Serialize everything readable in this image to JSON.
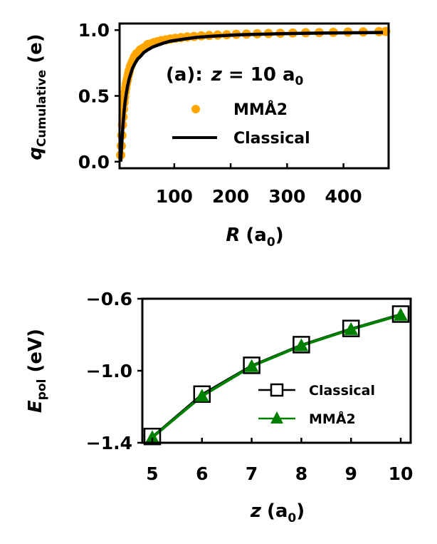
{
  "chart_data": [
    {
      "type": "scatter",
      "panel": "a",
      "annotation": {
        "label": "(a)",
        "sep": ":",
        "var": "z",
        "eq": " = 10 a",
        "sub": "0"
      },
      "xlabel": {
        "var": "R",
        "unit": "(a",
        "sub": "0",
        "close": ")"
      },
      "ylabel": {
        "var": "q",
        "sub": "Cumulative",
        "unit": " (e)"
      },
      "xlim": [
        3,
        480
      ],
      "ylim": [
        -0.05,
        1.05
      ],
      "xticks": [
        100,
        200,
        300,
        400
      ],
      "xtick_labels": [
        "100",
        "200",
        "300",
        "400"
      ],
      "yticks": [
        0.0,
        0.5,
        1.0
      ],
      "ytick_labels": [
        "0.0",
        "0.5",
        "1.0"
      ],
      "legend_position": "center-right",
      "series": [
        {
          "name": "MMÅ2",
          "kind": "scatter",
          "color": "#ffa500",
          "x": [
            5,
            6,
            7,
            8,
            9,
            10,
            11,
            12,
            13,
            14,
            15,
            16,
            17,
            18,
            19,
            20,
            22,
            24,
            26,
            28,
            30,
            33,
            36,
            40,
            44,
            48,
            53,
            58,
            64,
            70,
            77,
            85,
            93,
            102,
            112,
            123,
            135,
            148,
            162,
            177,
            193,
            210,
            228,
            247,
            267,
            288,
            310,
            333,
            357,
            382,
            408,
            435,
            463,
            475
          ],
          "y": [
            0.05,
            0.12,
            0.2,
            0.28,
            0.34,
            0.4,
            0.45,
            0.49,
            0.53,
            0.56,
            0.59,
            0.61,
            0.63,
            0.65,
            0.67,
            0.69,
            0.72,
            0.74,
            0.76,
            0.78,
            0.8,
            0.82,
            0.83,
            0.85,
            0.86,
            0.87,
            0.89,
            0.895,
            0.905,
            0.912,
            0.92,
            0.926,
            0.932,
            0.938,
            0.943,
            0.948,
            0.952,
            0.956,
            0.959,
            0.962,
            0.965,
            0.968,
            0.97,
            0.972,
            0.974,
            0.976,
            0.978,
            0.98,
            0.981,
            0.983,
            0.985,
            0.986,
            0.988,
            0.99
          ]
        },
        {
          "name": "Classical",
          "kind": "line",
          "color": "#000000",
          "x": [
            5,
            7,
            9,
            11,
            13,
            15,
            17,
            20,
            23,
            26,
            30,
            35,
            40,
            46,
            53,
            61,
            70,
            80,
            92,
            106,
            122,
            140,
            160,
            185,
            212,
            245,
            282,
            325,
            375,
            430,
            470
          ],
          "y": [
            0.0,
            0.15,
            0.28,
            0.38,
            0.46,
            0.52,
            0.57,
            0.63,
            0.67,
            0.71,
            0.745,
            0.78,
            0.8,
            0.83,
            0.85,
            0.87,
            0.885,
            0.9,
            0.915,
            0.925,
            0.935,
            0.945,
            0.952,
            0.958,
            0.964,
            0.968,
            0.972,
            0.975,
            0.978,
            0.98,
            0.982
          ]
        }
      ]
    },
    {
      "type": "line",
      "panel": "b",
      "xlabel": {
        "var": "z",
        "unit": "(a",
        "sub": "0",
        "close": ")"
      },
      "ylabel": {
        "var": "E",
        "sub": "pol",
        "unit": " (eV)"
      },
      "xlim": [
        4.8,
        10.2
      ],
      "ylim": [
        -1.4,
        -0.6
      ],
      "xticks": [
        5,
        6,
        7,
        8,
        9,
        10
      ],
      "xtick_labels": [
        "5",
        "6",
        "7",
        "8",
        "9",
        "10"
      ],
      "yticks": [
        -1.4,
        -1.0,
        -0.6
      ],
      "ytick_labels": [
        "−1.4",
        "−1.0",
        "−0.6"
      ],
      "legend_position": "lower-right",
      "x": [
        5,
        6,
        7,
        8,
        9,
        10
      ],
      "series": [
        {
          "name": "Classical",
          "marker": "open-square",
          "color": "#000000",
          "values": [
            -1.365,
            -1.13,
            -0.97,
            -0.855,
            -0.765,
            -0.685
          ]
        },
        {
          "name": "MMÅ2",
          "marker": "filled-triangle",
          "color": "#008000",
          "values": [
            -1.37,
            -1.14,
            -0.975,
            -0.86,
            -0.77,
            -0.69
          ]
        }
      ]
    }
  ]
}
